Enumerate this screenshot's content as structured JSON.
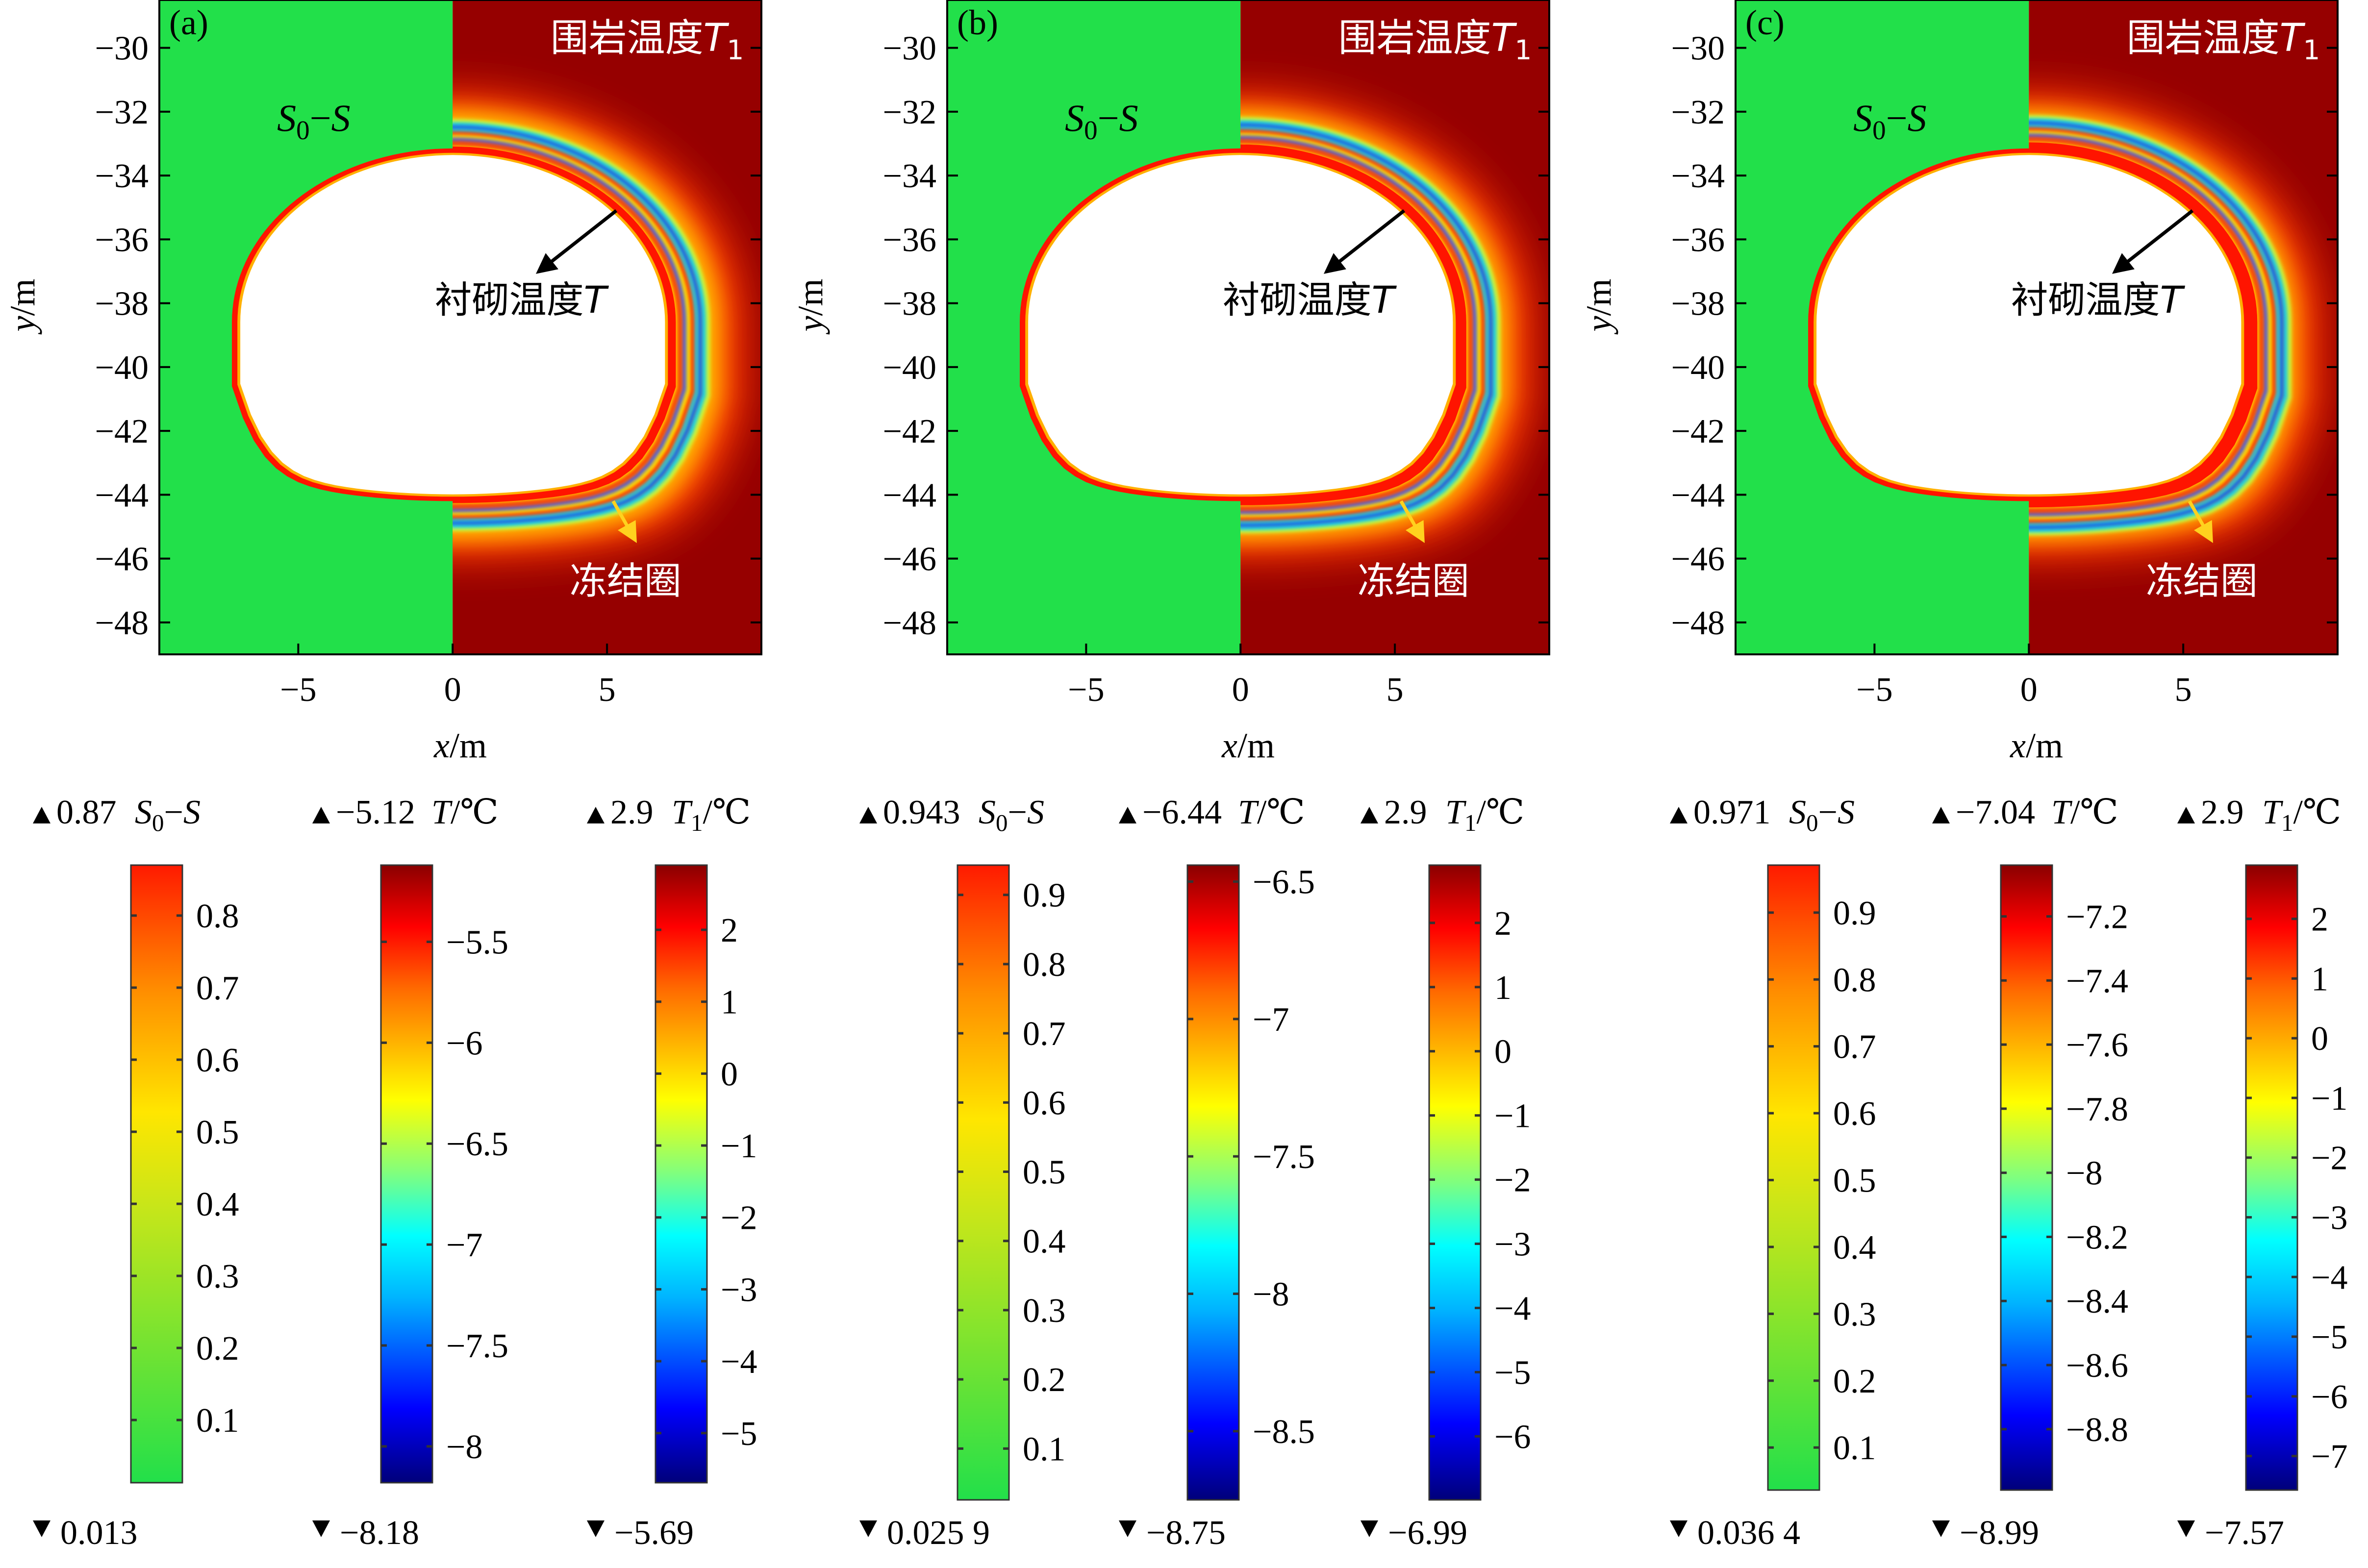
{
  "chart_data": [
    {
      "type": "heatmap",
      "panel_label": "(a)",
      "xlabel": "x/m",
      "ylabel": "y/m",
      "xticks": [
        -5,
        0,
        5
      ],
      "yticks": [
        -30,
        -32,
        -34,
        -36,
        -38,
        -40,
        -42,
        -44,
        -46,
        -48
      ],
      "xlim": [
        -9.5,
        10
      ],
      "ylim": [
        -49,
        -28.5
      ],
      "annotations": {
        "order_parameter": "S0−S",
        "rock_temperature": "围岩温度T1",
        "lining_temperature": "衬砌温度T",
        "frozen_ring": "冻结圈"
      },
      "colorbars": [
        {
          "name": "S0−S",
          "max_label": "0.87",
          "min_label": "0.013",
          "max": 0.87,
          "min": 0.013,
          "ticks": [
            0.8,
            0.7,
            0.6,
            0.5,
            0.4,
            0.3,
            0.2,
            0.1
          ],
          "colormap": "green-yellow-red"
        },
        {
          "name": "T/℃",
          "max_label": "−5.12",
          "min_label": "−8.18",
          "max": -5.12,
          "min": -8.18,
          "ticks": [
            -5.5,
            -6.0,
            -6.5,
            -7.0,
            -7.5,
            -8.0
          ],
          "colormap": "jet"
        },
        {
          "name": "T1/℃",
          "max_label": "2.9",
          "min_label": "−5.69",
          "max": 2.9,
          "min": -5.69,
          "ticks": [
            2,
            1,
            0,
            -1,
            -2,
            -3,
            -4,
            -5
          ],
          "colormap": "jet"
        }
      ]
    },
    {
      "type": "heatmap",
      "panel_label": "(b)",
      "xlabel": "x/m",
      "ylabel": "y/m",
      "xticks": [
        -5,
        0,
        5
      ],
      "yticks": [
        -30,
        -32,
        -34,
        -36,
        -38,
        -40,
        -42,
        -44,
        -46,
        -48
      ],
      "xlim": [
        -9.5,
        10
      ],
      "ylim": [
        -49,
        -28.5
      ],
      "annotations": {
        "order_parameter": "S0−S",
        "rock_temperature": "围岩温度T1",
        "lining_temperature": "衬砌温度T",
        "frozen_ring": "冻结圈"
      },
      "colorbars": [
        {
          "name": "S0−S",
          "max_label": "0.943",
          "min_label": "0.025 9",
          "max": 0.943,
          "min": 0.0259,
          "ticks": [
            0.9,
            0.8,
            0.7,
            0.6,
            0.5,
            0.4,
            0.3,
            0.2,
            0.1
          ],
          "colormap": "green-yellow-red"
        },
        {
          "name": "T/℃",
          "max_label": "−6.44",
          "min_label": "−8.75",
          "max": -6.44,
          "min": -8.75,
          "ticks": [
            -6.5,
            -7.0,
            -7.5,
            -8.0,
            -8.5
          ],
          "colormap": "jet"
        },
        {
          "name": "T1/℃",
          "max_label": "2.9",
          "min_label": "−6.99",
          "max": 2.9,
          "min": -6.99,
          "ticks": [
            2,
            1,
            0,
            -1,
            -2,
            -3,
            -4,
            -5,
            -6
          ],
          "colormap": "jet"
        }
      ]
    },
    {
      "type": "heatmap",
      "panel_label": "(c)",
      "xlabel": "x/m",
      "ylabel": "y/m",
      "xticks": [
        -5,
        0,
        5
      ],
      "yticks": [
        -30,
        -32,
        -34,
        -36,
        -38,
        -40,
        -42,
        -44,
        -46,
        -48
      ],
      "xlim": [
        -9.5,
        10
      ],
      "ylim": [
        -49,
        -28.5
      ],
      "annotations": {
        "order_parameter": "S0−S",
        "rock_temperature": "围岩温度T1",
        "lining_temperature": "衬砌温度T",
        "frozen_ring": "冻结圈"
      },
      "colorbars": [
        {
          "name": "S0−S",
          "max_label": "0.971",
          "min_label": "0.036 4",
          "max": 0.971,
          "min": 0.0364,
          "ticks": [
            0.9,
            0.8,
            0.7,
            0.6,
            0.5,
            0.4,
            0.3,
            0.2,
            0.1
          ],
          "colormap": "green-yellow-red"
        },
        {
          "name": "T/℃",
          "max_label": "−7.04",
          "min_label": "−8.99",
          "max": -7.04,
          "min": -8.99,
          "ticks": [
            -7.2,
            -7.4,
            -7.6,
            -7.8,
            -8.0,
            -8.2,
            -8.4,
            -8.6,
            -8.8
          ],
          "colormap": "jet"
        },
        {
          "name": "T1/℃",
          "max_label": "2.9",
          "min_label": "−7.57",
          "max": 2.9,
          "min": -7.57,
          "ticks": [
            2,
            1,
            0,
            -1,
            -2,
            -3,
            -4,
            -5,
            -6,
            -7
          ],
          "colormap": "jet"
        }
      ]
    }
  ],
  "colors": {
    "field_green": "#22e04a",
    "rock_dark_red": "#960000",
    "contour_red": "#ff1400"
  }
}
